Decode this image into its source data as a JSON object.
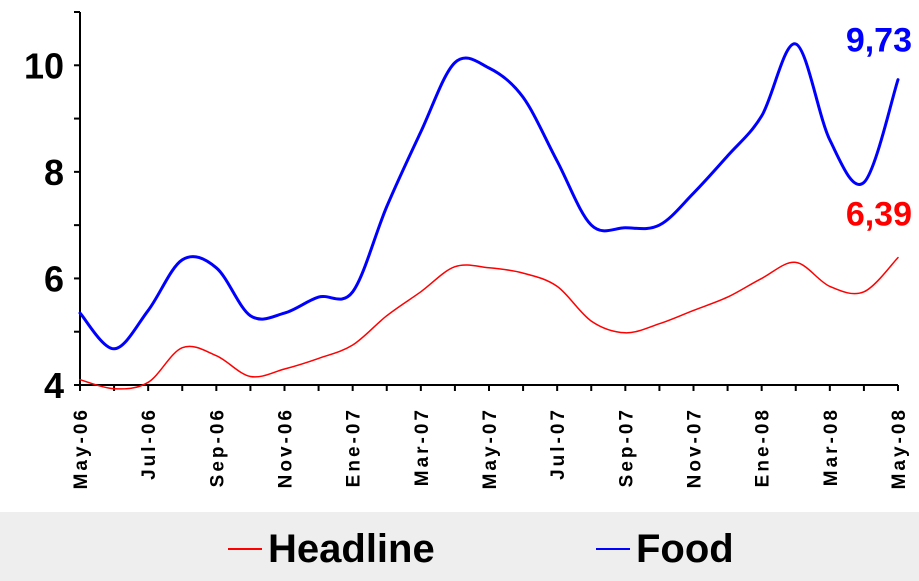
{
  "chart_data": {
    "type": "line",
    "categories": [
      "May-06",
      "Jul-06",
      "Sep-06",
      "Nov-06",
      "Ene-07",
      "Mar-07",
      "May-07",
      "Jul-07",
      "Sep-07",
      "Nov-07",
      "Ene-08",
      "Mar-08",
      "May-08"
    ],
    "x": [
      "May-06",
      "Jun-06",
      "Jul-06",
      "Aug-06",
      "Sep-06",
      "Oct-06",
      "Nov-06",
      "Dec-06",
      "Ene-07",
      "Feb-07",
      "Mar-07",
      "Apr-07",
      "May-07",
      "Jun-07",
      "Jul-07",
      "Aug-07",
      "Sep-07",
      "Oct-07",
      "Nov-07",
      "Dec-07",
      "Ene-08",
      "Feb-08",
      "Mar-08",
      "Apr-08",
      "May-08"
    ],
    "series": [
      {
        "name": "Headline",
        "color": "#ff0000",
        "values": [
          4.1,
          3.93,
          4.05,
          4.7,
          4.55,
          4.16,
          4.3,
          4.5,
          4.75,
          5.3,
          5.75,
          6.22,
          6.2,
          6.1,
          5.85,
          5.2,
          4.98,
          5.15,
          5.4,
          5.65,
          6.0,
          6.3,
          5.85,
          5.75,
          6.39
        ]
      },
      {
        "name": "Food",
        "color": "#0000ff",
        "values": [
          5.35,
          4.68,
          5.4,
          6.35,
          6.2,
          5.3,
          5.35,
          5.65,
          5.75,
          7.35,
          8.75,
          10.05,
          9.95,
          9.4,
          8.2,
          7.0,
          6.95,
          7.0,
          7.6,
          8.3,
          9.05,
          10.4,
          8.6,
          7.8,
          9.73
        ]
      }
    ],
    "ylim": [
      4,
      11
    ],
    "yticks": [
      "4",
      "6",
      "8",
      "10"
    ],
    "end_labels": [
      "6,39",
      "9,73"
    ],
    "xlabel": "",
    "ylabel": "",
    "title": "",
    "grid": false,
    "legend_position": "bottom"
  },
  "legend": {
    "headline_label": "Headline",
    "food_label": "Food"
  }
}
